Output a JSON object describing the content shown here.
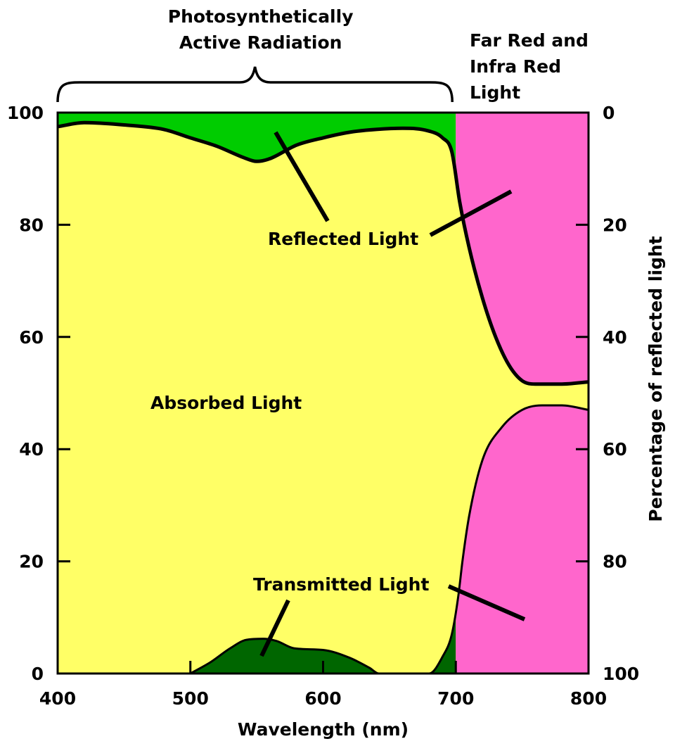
{
  "chart_data": {
    "type": "area",
    "x": {
      "label": "Wavelength (nm)",
      "min": 400,
      "max": 800,
      "ticks": [
        400,
        500,
        600,
        700,
        800
      ]
    },
    "y_left": {
      "label": "",
      "min": 0,
      "max": 100,
      "ticks": [
        0,
        20,
        40,
        60,
        80,
        100
      ]
    },
    "y_right": {
      "label": "Percentage of reflected light",
      "min": 0,
      "max": 100,
      "reversed": true,
      "ticks": [
        0,
        20,
        40,
        60,
        80,
        100
      ]
    },
    "regions": [
      {
        "label": "Photosynthetically\nActive Radiation",
        "from": 400,
        "to": 700
      },
      {
        "label": "Far Red and\nInfra Red\nLight",
        "from": 700,
        "to": 800
      }
    ],
    "series": [
      {
        "name": "Reflected Light",
        "boundary_y": [
          [
            400,
            97.5
          ],
          [
            420,
            98.2
          ],
          [
            450,
            97.8
          ],
          [
            480,
            97
          ],
          [
            500,
            95.5
          ],
          [
            520,
            94
          ],
          [
            540,
            92
          ],
          [
            550,
            91.3
          ],
          [
            560,
            91.8
          ],
          [
            580,
            94.2
          ],
          [
            600,
            95.5
          ],
          [
            620,
            96.5
          ],
          [
            640,
            97
          ],
          [
            660,
            97.2
          ],
          [
            680,
            96.7
          ],
          [
            690,
            95.5
          ],
          [
            697,
            93
          ],
          [
            703,
            84
          ],
          [
            710,
            76
          ],
          [
            720,
            67
          ],
          [
            730,
            60
          ],
          [
            740,
            55
          ],
          [
            750,
            52.2
          ],
          [
            760,
            51.6
          ],
          [
            780,
            51.6
          ],
          [
            800,
            52
          ]
        ]
      },
      {
        "name": "Transmitted Light",
        "boundary_y": [
          [
            500,
            0
          ],
          [
            515,
            2
          ],
          [
            530,
            4.5
          ],
          [
            542,
            6
          ],
          [
            555,
            6.2
          ],
          [
            565,
            5.8
          ],
          [
            578,
            4.5
          ],
          [
            600,
            4.2
          ],
          [
            620,
            2.8
          ],
          [
            635,
            1
          ],
          [
            642,
            0
          ],
          [
            680,
            0
          ],
          [
            690,
            3
          ],
          [
            697,
            7
          ],
          [
            702,
            14
          ],
          [
            705,
            20
          ],
          [
            710,
            28
          ],
          [
            720,
            38
          ],
          [
            735,
            44
          ],
          [
            750,
            47
          ],
          [
            765,
            47.8
          ],
          [
            780,
            47.8
          ],
          [
            800,
            47
          ]
        ]
      }
    ],
    "annotations": [
      {
        "text": "Reflected Light"
      },
      {
        "text": "Absorbed Light"
      },
      {
        "text": "Transmitted Light"
      }
    ],
    "colors": {
      "absorbed": "#ffff66",
      "reflected_par": "#00cc00",
      "reflected_ir": "#ff66cc",
      "transmitted_par": "#006600",
      "transmitted_ir": "#ff66cc",
      "curve": "#000000"
    }
  }
}
